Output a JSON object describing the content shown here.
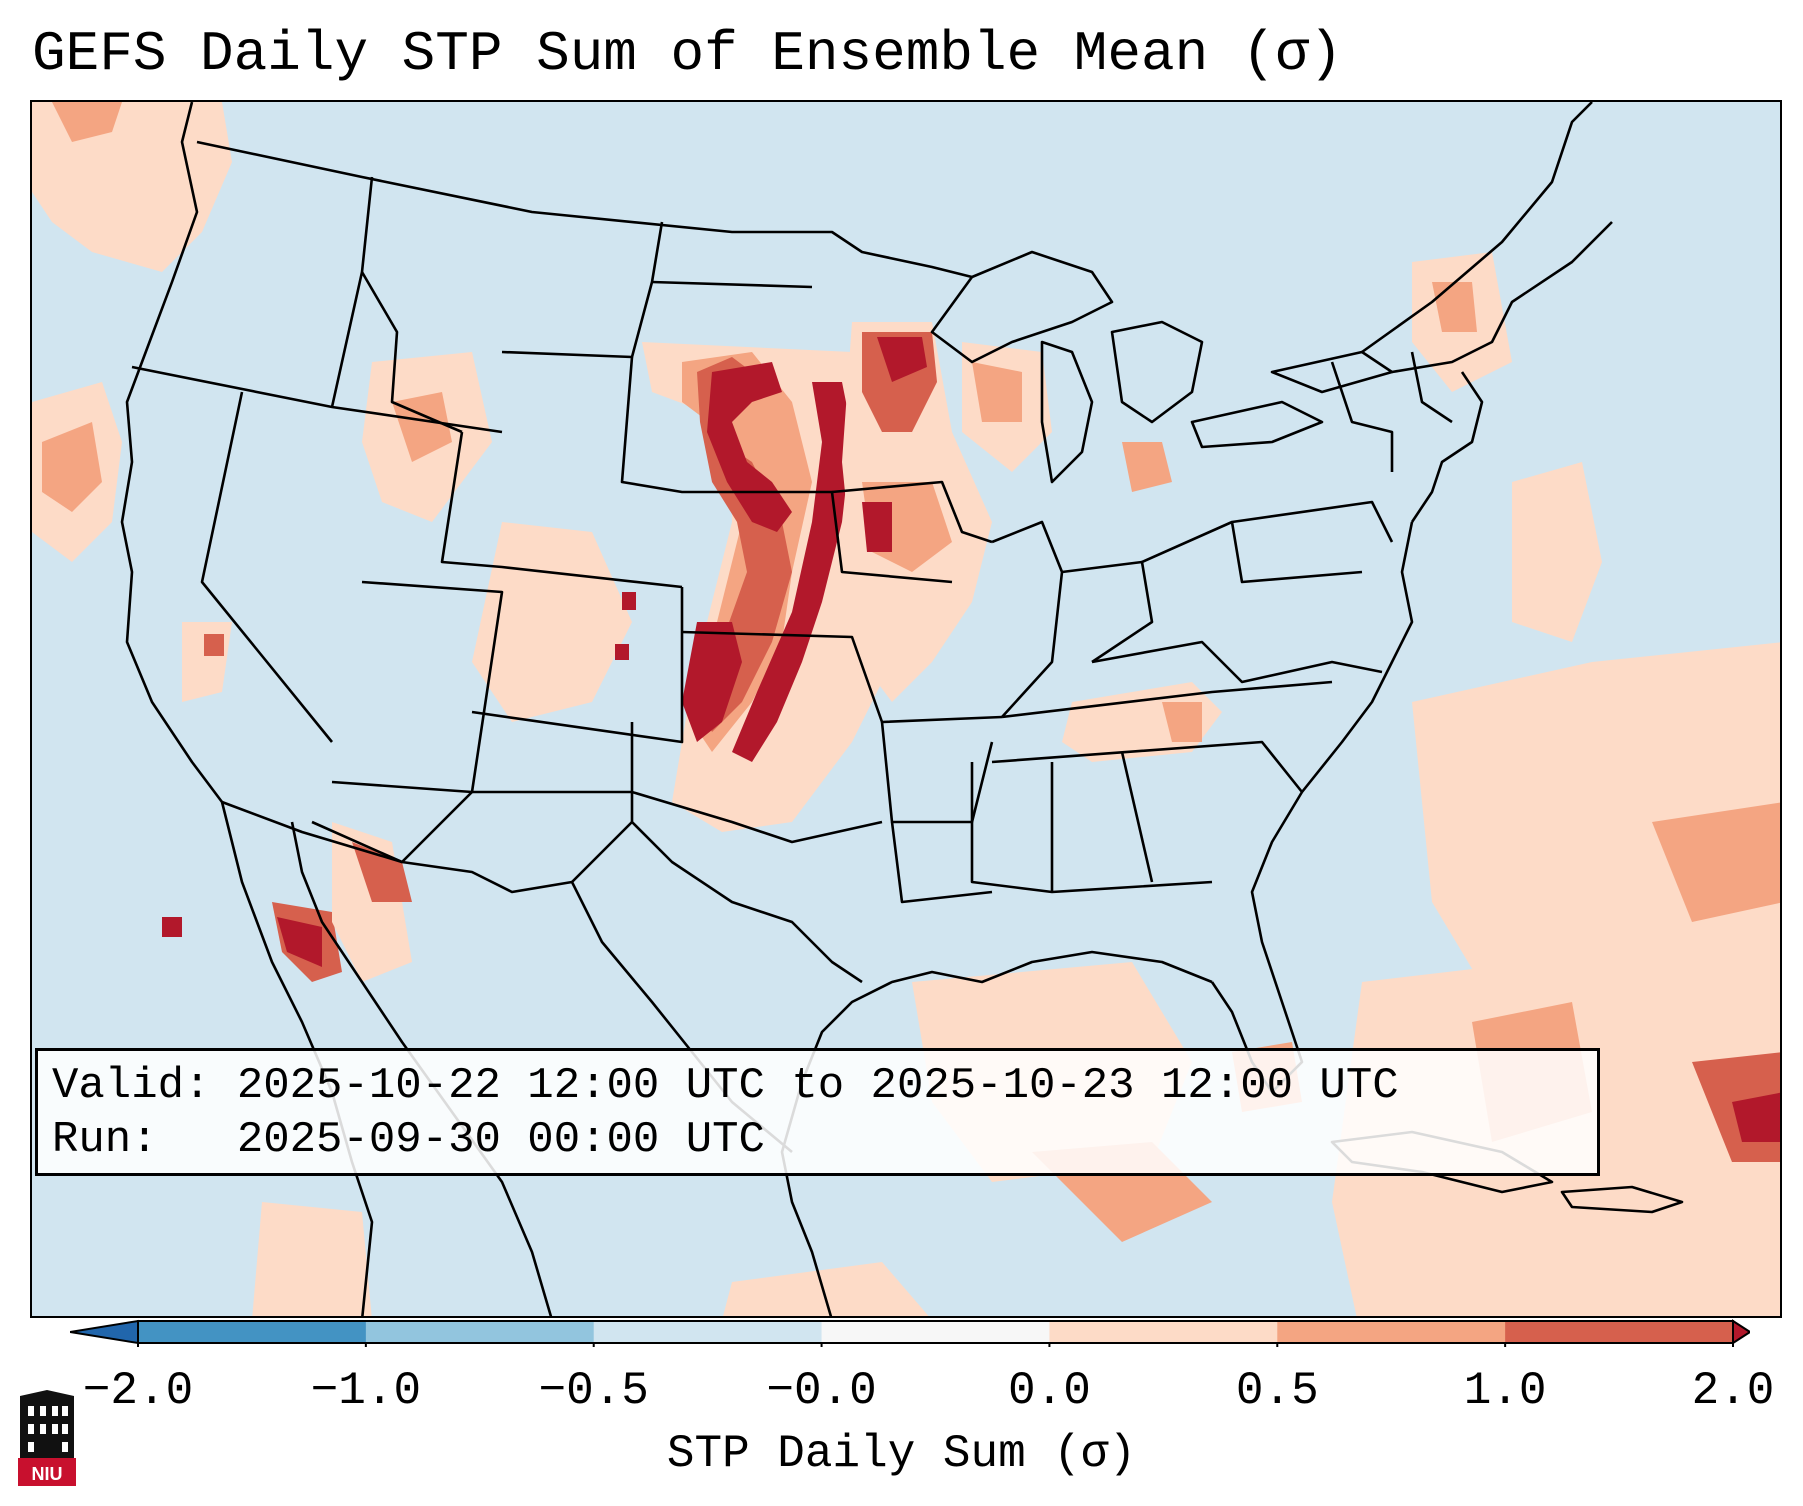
{
  "title": "GEFS Daily STP Sum of Ensemble Mean (σ)",
  "info": {
    "valid_label": "Valid:",
    "valid_value": "2025-10-22 12:00 UTC to 2025-10-23 12:00 UTC",
    "run_label": "Run:",
    "run_value": "2025-09-30 00:00 UTC"
  },
  "colorbar": {
    "label": "STP Daily Sum (σ)",
    "ticks": [
      "−2.0",
      "−1.0",
      "−0.5",
      "−0.0",
      "0.0",
      "0.5",
      "1.0",
      "2.0"
    ],
    "colors": [
      "#2166ac",
      "#4393c3",
      "#92c5de",
      "#d1e5f0",
      "#f7f7f7",
      "#fddbc7",
      "#f4a582",
      "#d6604d",
      "#b2182b"
    ]
  },
  "map": {
    "background_color": "#d1e5f0",
    "outline_color": "#000000",
    "field": "STP daily sum anomaly (σ)",
    "region": "Continental United States",
    "projection": "Lambert Conformal"
  },
  "logo": {
    "text": "NIU",
    "color": "#c8102e"
  }
}
